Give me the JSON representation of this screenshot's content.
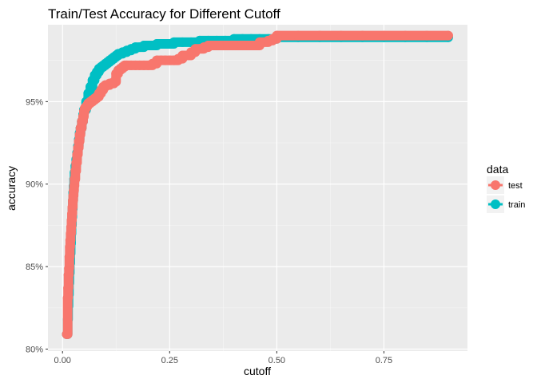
{
  "chart_data": {
    "type": "line",
    "title": "Train/Test Accuracy for Different Cutoff",
    "xlabel": "cutoff",
    "ylabel": "accuracy",
    "xlim": [
      -0.034,
      0.945
    ],
    "ylim": [
      0.7988,
      0.9966
    ],
    "x_ticks": [
      0.0,
      0.25,
      0.5,
      0.75
    ],
    "x_tick_labels": [
      "0.00",
      "0.25",
      "0.50",
      "0.75"
    ],
    "y_ticks": [
      0.8,
      0.85,
      0.9,
      0.95
    ],
    "y_tick_labels": [
      "80%",
      "85%",
      "90%",
      "95%"
    ],
    "grid": true,
    "legend": {
      "title": "data",
      "position": "right"
    },
    "series": [
      {
        "name": "test",
        "color": "#F8766D",
        "x": [
          0.01,
          0.012,
          0.013,
          0.014,
          0.015,
          0.016,
          0.017,
          0.018,
          0.019,
          0.02,
          0.021,
          0.022,
          0.023,
          0.024,
          0.025,
          0.026,
          0.027,
          0.028,
          0.03,
          0.032,
          0.034,
          0.036,
          0.038,
          0.04,
          0.042,
          0.045,
          0.048,
          0.05,
          0.052,
          0.055,
          0.058,
          0.06,
          0.065,
          0.07,
          0.075,
          0.08,
          0.085,
          0.09,
          0.095,
          0.1,
          0.105,
          0.11,
          0.115,
          0.12,
          0.125,
          0.13,
          0.135,
          0.14,
          0.145,
          0.15,
          0.16,
          0.17,
          0.18,
          0.19,
          0.2,
          0.21,
          0.22,
          0.23,
          0.24,
          0.25,
          0.26,
          0.27,
          0.28,
          0.29,
          0.3,
          0.31,
          0.32,
          0.33,
          0.34,
          0.35,
          0.36,
          0.38,
          0.4,
          0.42,
          0.44,
          0.46,
          0.48,
          0.49,
          0.5,
          0.55,
          0.6,
          0.65,
          0.7,
          0.75,
          0.8,
          0.85,
          0.9
        ],
        "y": [
          0.809,
          0.831,
          0.837,
          0.845,
          0.849,
          0.856,
          0.862,
          0.866,
          0.87,
          0.874,
          0.878,
          0.882,
          0.886,
          0.89,
          0.893,
          0.896,
          0.899,
          0.903,
          0.908,
          0.913,
          0.918,
          0.922,
          0.926,
          0.93,
          0.934,
          0.938,
          0.941,
          0.944,
          0.946,
          0.947,
          0.948,
          0.949,
          0.95,
          0.951,
          0.952,
          0.953,
          0.955,
          0.957,
          0.959,
          0.96,
          0.96,
          0.961,
          0.961,
          0.962,
          0.967,
          0.969,
          0.97,
          0.971,
          0.972,
          0.972,
          0.972,
          0.972,
          0.972,
          0.972,
          0.972,
          0.973,
          0.975,
          0.975,
          0.975,
          0.975,
          0.975,
          0.976,
          0.978,
          0.978,
          0.98,
          0.982,
          0.982,
          0.983,
          0.984,
          0.984,
          0.984,
          0.984,
          0.984,
          0.984,
          0.984,
          0.986,
          0.987,
          0.988,
          0.99,
          0.99,
          0.99,
          0.99,
          0.99,
          0.99,
          0.99,
          0.99,
          0.99
        ]
      },
      {
        "name": "train",
        "color": "#00BFC4",
        "x": [
          0.01,
          0.012,
          0.013,
          0.014,
          0.015,
          0.016,
          0.017,
          0.018,
          0.019,
          0.02,
          0.021,
          0.022,
          0.023,
          0.024,
          0.025,
          0.026,
          0.027,
          0.028,
          0.03,
          0.032,
          0.034,
          0.036,
          0.038,
          0.04,
          0.042,
          0.045,
          0.048,
          0.05,
          0.055,
          0.06,
          0.065,
          0.07,
          0.075,
          0.08,
          0.085,
          0.09,
          0.095,
          0.1,
          0.105,
          0.11,
          0.115,
          0.12,
          0.125,
          0.13,
          0.135,
          0.14,
          0.15,
          0.16,
          0.17,
          0.18,
          0.19,
          0.2,
          0.22,
          0.24,
          0.26,
          0.28,
          0.3,
          0.32,
          0.34,
          0.36,
          0.38,
          0.4,
          0.42,
          0.44,
          0.46,
          0.48,
          0.5,
          0.55,
          0.6,
          0.65,
          0.7,
          0.75,
          0.8,
          0.85,
          0.9
        ],
        "y": [
          0.809,
          0.818,
          0.826,
          0.833,
          0.84,
          0.846,
          0.852,
          0.858,
          0.864,
          0.87,
          0.875,
          0.88,
          0.885,
          0.89,
          0.895,
          0.899,
          0.903,
          0.907,
          0.911,
          0.915,
          0.919,
          0.923,
          0.927,
          0.931,
          0.934,
          0.938,
          0.942,
          0.945,
          0.95,
          0.955,
          0.959,
          0.963,
          0.966,
          0.968,
          0.97,
          0.971,
          0.972,
          0.973,
          0.974,
          0.975,
          0.976,
          0.977,
          0.978,
          0.979,
          0.979,
          0.98,
          0.981,
          0.982,
          0.983,
          0.983,
          0.984,
          0.984,
          0.985,
          0.985,
          0.986,
          0.986,
          0.986,
          0.987,
          0.987,
          0.987,
          0.987,
          0.988,
          0.988,
          0.988,
          0.988,
          0.988,
          0.989,
          0.989,
          0.989,
          0.989,
          0.989,
          0.989,
          0.989,
          0.989,
          0.989
        ]
      }
    ]
  }
}
